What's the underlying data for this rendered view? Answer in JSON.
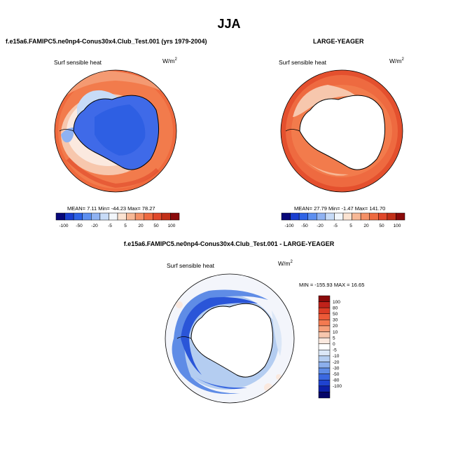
{
  "figure": {
    "title": "JJA",
    "panel1": {
      "case_title": "f.e15a6.FAMIPC5.ne0np4-Conus30x4.Club_Test.001 (yrs 1979-2004)",
      "variable": "Surf sensible heat",
      "units_base": "W/m",
      "units_exp": "2",
      "stats": "MEAN=  7.11  Min= -44.23  Max=  78.27"
    },
    "panel2": {
      "case_title": "LARGE-YEAGER",
      "variable": "Surf sensible heat",
      "units_base": "W/m",
      "units_exp": "2",
      "stats": "MEAN=  27.79  Min=  -1.47  Max=  141.70"
    },
    "panel3": {
      "case_title": "f.e15a6.FAMIPC5.ne0np4-Conus30x4.Club_Test.001 - LARGE-YEAGER",
      "variable": "Surf sensible heat",
      "units_base": "W/m",
      "units_exp": "2",
      "stats": "MIN = -155.93 MAX =  16.65"
    }
  },
  "colorbars": {
    "horizontal": {
      "colors": [
        "#08087a",
        "#1a3fd0",
        "#2e63e6",
        "#5d8ff0",
        "#8fb2f2",
        "#c7dbf7",
        "#f2f6fb",
        "#fbe3d2",
        "#f7b896",
        "#f49066",
        "#ee6a40",
        "#e0482a",
        "#c23018",
        "#8a0a0a"
      ],
      "ticks": [
        "-100",
        "-50",
        "-20",
        "-5",
        "5",
        "20",
        "50",
        "100"
      ]
    },
    "vertical": {
      "colors": [
        "#8a0a0a",
        "#c0221a",
        "#dc3d26",
        "#ec5a38",
        "#f37a50",
        "#f59f7a",
        "#f7c7ad",
        "#fbe9df",
        "#ffffff",
        "#dbe7f7",
        "#b4cdf1",
        "#8cafec",
        "#5f8ce6",
        "#3a68e0",
        "#1f43d0",
        "#0d20a8",
        "#040468"
      ],
      "ticks": [
        "100",
        "80",
        "50",
        "30",
        "20",
        "10",
        "5",
        "0",
        "-5",
        "-10",
        "-20",
        "-30",
        "-50",
        "-80",
        "-100"
      ]
    }
  }
}
